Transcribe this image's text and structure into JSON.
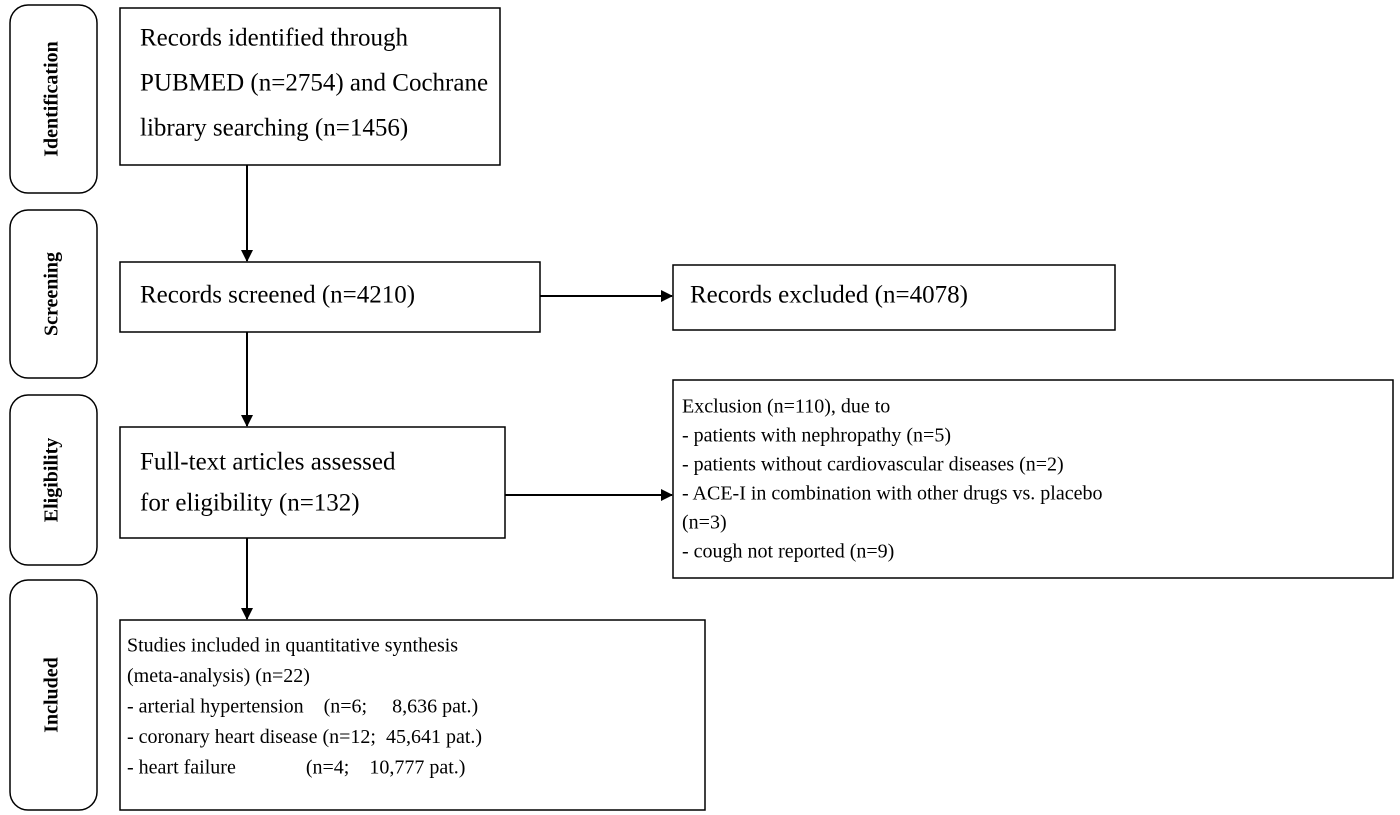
{
  "stages": [
    "Identification",
    "Screening",
    "Eligibility",
    "Included"
  ],
  "nodes": [
    {
      "lines": [
        "Records identified through",
        "PUBMED (n=2754) and Cochrane",
        "library searching (n=1456)"
      ]
    },
    {
      "lines": [
        "Records screened (n=4210)"
      ]
    },
    {
      "lines": [
        "Records excluded (n=4078)"
      ]
    },
    {
      "lines": [
        "Full-text articles assessed",
        "for eligibility (n=132)"
      ]
    },
    {
      "lines": [
        "Exclusion (n=110), due to",
        "- patients with nephropathy (n=5)",
        "- patients without cardiovascular diseases (n=2)",
        "- ACE-I in combination with other drugs vs. placebo",
        "(n=3)",
        "- cough not reported (n=9)"
      ]
    },
    {
      "lines": [
        "Studies included in quantitative synthesis",
        "(meta-analysis) (n=22)",
        "- arterial hypertension    (n=6;     8,636 pat.)",
        "- coronary heart disease (n=12;  45,641 pat.)",
        "- heart failure              (n=4;    10,777 pat.)"
      ]
    }
  ]
}
